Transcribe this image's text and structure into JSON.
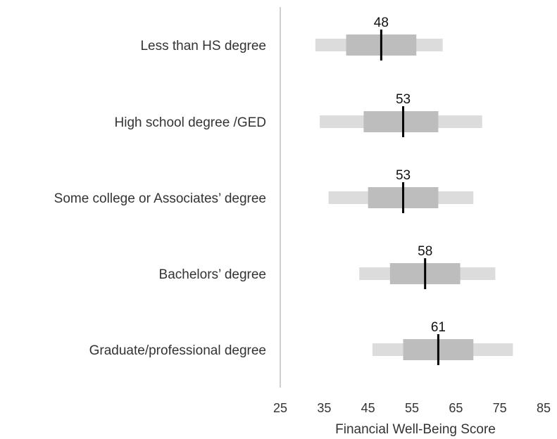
{
  "chart_data": {
    "type": "box",
    "xlabel": "Financial Well-Being Score",
    "xlim": [
      25,
      85
    ],
    "xticks": [
      25,
      35,
      45,
      55,
      65,
      75,
      85
    ],
    "grid": false,
    "colors": {
      "outer": "#dcdcdc",
      "inner": "#bdbdbd",
      "median": "#000000",
      "axis": "#bfbfbf"
    },
    "categories": [
      "Less than HS degree",
      "High school degree /GED",
      "Some college or Associates’ degree",
      "Bachelors’ degree",
      "Graduate/professional degree"
    ],
    "series": [
      {
        "category": "Less than HS degree",
        "p10": 33,
        "p25": 40,
        "median": 48,
        "p75": 56,
        "p90": 62,
        "label": "48"
      },
      {
        "category": "High school degree /GED",
        "p10": 34,
        "p25": 44,
        "median": 53,
        "p75": 61,
        "p90": 71,
        "label": "53"
      },
      {
        "category": "Some college or Associates’ degree",
        "p10": 36,
        "p25": 45,
        "median": 53,
        "p75": 61,
        "p90": 69,
        "label": "53"
      },
      {
        "category": "Bachelors’ degree",
        "p10": 43,
        "p25": 50,
        "median": 58,
        "p75": 66,
        "p90": 74,
        "label": "58"
      },
      {
        "category": "Graduate/professional degree",
        "p10": 46,
        "p25": 53,
        "median": 61,
        "p75": 69,
        "p90": 78,
        "label": "61"
      }
    ]
  }
}
